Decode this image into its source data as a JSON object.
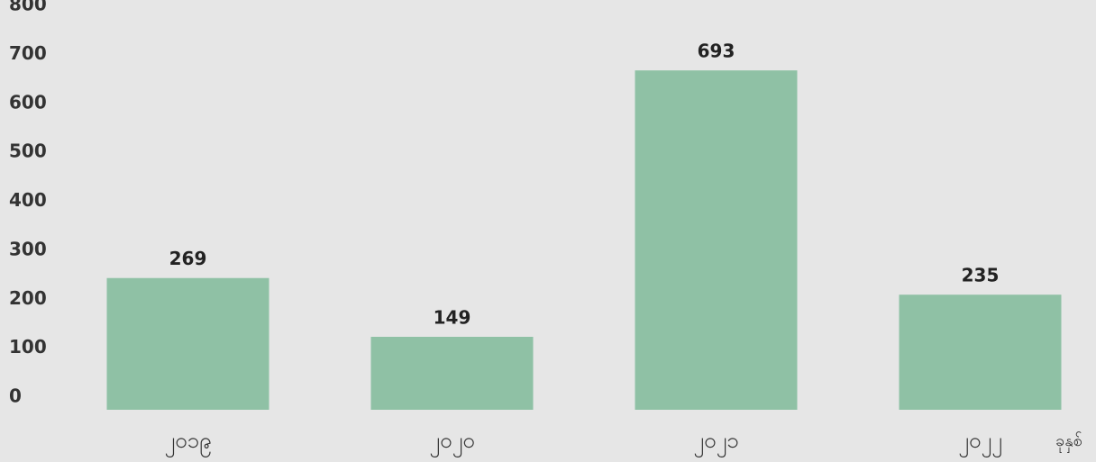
{
  "chart_data": {
    "type": "bar",
    "categories": [
      "၂၀၁၉",
      "၂၀၂၀",
      "၂၀၂၁",
      "၂၀၂၂"
    ],
    "values": [
      269,
      149,
      693,
      235
    ],
    "color": "#8fc1a5",
    "x_label": "ခုနှစ်",
    "ylim": [
      0,
      800
    ],
    "yticks": [
      0,
      100,
      200,
      300,
      400,
      500,
      600,
      700,
      800
    ],
    "grid": false
  }
}
